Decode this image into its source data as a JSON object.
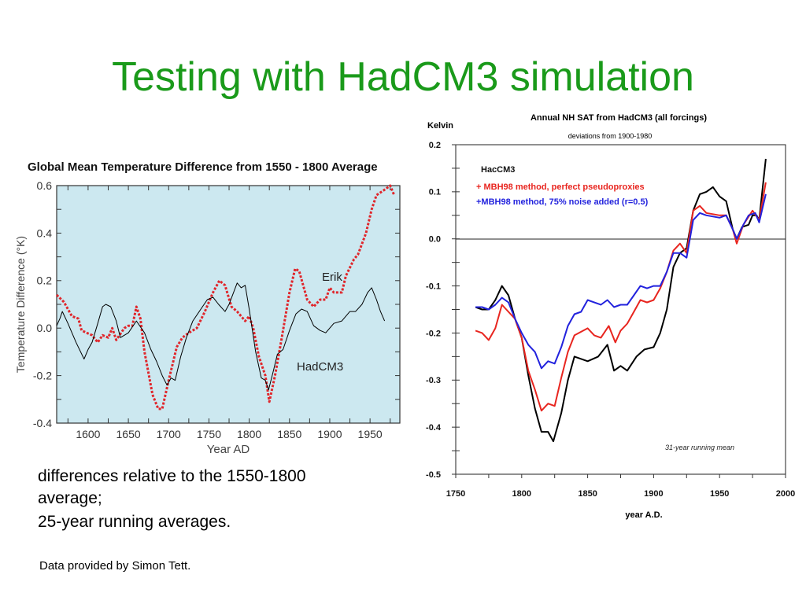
{
  "slide": {
    "title": "Testing  with HadCM3 simulation",
    "body_lines": [
      "differences relative to the 1550-1800",
      "average;",
      "25-year running averages."
    ],
    "credit": "Data provided by Simon Tett.",
    "title_color": "#1a9a1a"
  },
  "chart_data": [
    {
      "type": "line",
      "title": "Global Mean Temperature Difference from 1550 - 1800 Average",
      "xlabel": "Year AD",
      "ylabel": "Temperature Difference (°K)",
      "xlim": [
        1561,
        1987
      ],
      "ylim": [
        -0.4,
        0.6
      ],
      "xticks": [
        "1600",
        "1650",
        "1700",
        "1750",
        "1800",
        "1850",
        "1900",
        "1950"
      ],
      "yticks": [
        "0.6",
        "0.4",
        "0.2",
        "0.0",
        "-0.2",
        "-0.4"
      ],
      "background": "#cce8f0",
      "annotations": [
        "Erik",
        "HadCM3"
      ],
      "series": [
        {
          "name": "Erik",
          "color": "#e0262b",
          "style": "dotted",
          "x": [
            1561,
            1570,
            1580,
            1588,
            1592,
            1605,
            1612,
            1618,
            1625,
            1630,
            1635,
            1645,
            1650,
            1655,
            1660,
            1665,
            1670,
            1680,
            1687,
            1692,
            1700,
            1710,
            1717,
            1725,
            1735,
            1745,
            1755,
            1763,
            1770,
            1778,
            1785,
            1795,
            1800,
            1805,
            1812,
            1820,
            1825,
            1832,
            1840,
            1850,
            1857,
            1862,
            1872,
            1880,
            1888,
            1895,
            1900,
            1905,
            1915,
            1920,
            1930,
            1935,
            1945,
            1952,
            1958,
            1967,
            1975,
            1980
          ],
          "y": [
            0.14,
            0.11,
            0.05,
            0.04,
            -0.01,
            -0.03,
            -0.06,
            -0.03,
            -0.04,
            0.0,
            -0.05,
            0.0,
            0.01,
            0.01,
            0.09,
            0.04,
            -0.1,
            -0.28,
            -0.34,
            -0.34,
            -0.22,
            -0.08,
            -0.04,
            -0.02,
            0.0,
            0.07,
            0.15,
            0.2,
            0.18,
            0.09,
            0.07,
            0.03,
            0.05,
            0.0,
            -0.12,
            -0.2,
            -0.31,
            -0.2,
            -0.05,
            0.15,
            0.25,
            0.24,
            0.12,
            0.09,
            0.12,
            0.12,
            0.17,
            0.15,
            0.15,
            0.22,
            0.29,
            0.31,
            0.4,
            0.5,
            0.56,
            0.58,
            0.6,
            0.56
          ]
        },
        {
          "name": "HadCM3",
          "color": "#000000",
          "style": "solid",
          "x": [
            1561,
            1565,
            1568,
            1575,
            1585,
            1595,
            1600,
            1605,
            1612,
            1618,
            1622,
            1628,
            1635,
            1640,
            1650,
            1660,
            1670,
            1678,
            1685,
            1692,
            1698,
            1703,
            1708,
            1715,
            1722,
            1730,
            1740,
            1748,
            1755,
            1762,
            1770,
            1775,
            1785,
            1790,
            1795,
            1800,
            1808,
            1815,
            1820,
            1824,
            1830,
            1835,
            1842,
            1850,
            1858,
            1865,
            1872,
            1880,
            1888,
            1895,
            1905,
            1915,
            1925,
            1932,
            1940,
            1947,
            1952,
            1958,
            1963,
            1968
          ],
          "y": [
            0.01,
            0.04,
            0.07,
            0.02,
            -0.06,
            -0.13,
            -0.09,
            -0.06,
            0.02,
            0.09,
            0.1,
            0.09,
            0.03,
            -0.04,
            -0.02,
            0.03,
            -0.02,
            -0.09,
            -0.14,
            -0.2,
            -0.24,
            -0.21,
            -0.22,
            -0.12,
            -0.04,
            0.03,
            0.08,
            0.12,
            0.13,
            0.1,
            0.07,
            0.1,
            0.19,
            0.17,
            0.18,
            0.08,
            -0.1,
            -0.21,
            -0.22,
            -0.26,
            -0.18,
            -0.11,
            -0.09,
            -0.01,
            0.06,
            0.08,
            0.07,
            0.01,
            -0.01,
            -0.02,
            0.02,
            0.03,
            0.07,
            0.07,
            0.1,
            0.15,
            0.17,
            0.12,
            0.07,
            0.03
          ]
        }
      ]
    },
    {
      "type": "line",
      "title": "Annual NH SAT from HadCM3 (all forcings)",
      "subtitle": "deviations from 1900-1980",
      "ylabel": "Kelvin",
      "xlabel": "year A.D.",
      "xlim": [
        1750,
        2000
      ],
      "ylim": [
        -0.5,
        0.2
      ],
      "xticks": [
        "1750",
        "1800",
        "1850",
        "1900",
        "1950",
        "2000"
      ],
      "yticks": [
        "0.2",
        "0.1",
        "0.0",
        "-0.1",
        "-0.2",
        "-0.3",
        "-0.4",
        "-0.5"
      ],
      "note": "31-year running mean",
      "series": [
        {
          "name": "HacCM3",
          "color": "#000000",
          "x": [
            1765,
            1770,
            1775,
            1780,
            1785,
            1790,
            1795,
            1800,
            1805,
            1810,
            1815,
            1820,
            1824,
            1830,
            1835,
            1840,
            1850,
            1858,
            1865,
            1870,
            1875,
            1880,
            1887,
            1893,
            1900,
            1905,
            1910,
            1915,
            1920,
            1925,
            1930,
            1935,
            1940,
            1945,
            1950,
            1955,
            1960,
            1963,
            1967,
            1972,
            1975,
            1978,
            1980,
            1985
          ],
          "y": [
            -0.145,
            -0.15,
            -0.15,
            -0.13,
            -0.1,
            -0.12,
            -0.17,
            -0.21,
            -0.29,
            -0.36,
            -0.41,
            -0.41,
            -0.43,
            -0.37,
            -0.3,
            -0.25,
            -0.26,
            -0.25,
            -0.225,
            -0.28,
            -0.27,
            -0.28,
            -0.25,
            -0.235,
            -0.23,
            -0.2,
            -0.15,
            -0.06,
            -0.03,
            -0.02,
            0.06,
            0.095,
            0.1,
            0.11,
            0.09,
            0.08,
            0.02,
            0.0,
            0.025,
            0.03,
            0.05,
            0.05,
            0.04,
            0.17
          ]
        },
        {
          "name": "+ MBH98 method, perfect pseudoproxies",
          "color": "#e8251f",
          "x": [
            1765,
            1770,
            1775,
            1780,
            1785,
            1790,
            1795,
            1800,
            1805,
            1810,
            1815,
            1820,
            1825,
            1830,
            1835,
            1840,
            1850,
            1855,
            1860,
            1866,
            1871,
            1875,
            1880,
            1885,
            1890,
            1895,
            1900,
            1905,
            1910,
            1915,
            1920,
            1925,
            1930,
            1935,
            1940,
            1950,
            1955,
            1960,
            1963,
            1968,
            1975,
            1980,
            1985
          ],
          "y": [
            -0.195,
            -0.2,
            -0.215,
            -0.19,
            -0.14,
            -0.155,
            -0.17,
            -0.21,
            -0.28,
            -0.32,
            -0.365,
            -0.35,
            -0.355,
            -0.295,
            -0.24,
            -0.205,
            -0.19,
            -0.205,
            -0.21,
            -0.185,
            -0.22,
            -0.195,
            -0.18,
            -0.155,
            -0.13,
            -0.135,
            -0.13,
            -0.105,
            -0.07,
            -0.025,
            -0.01,
            -0.03,
            0.06,
            0.07,
            0.055,
            0.05,
            0.05,
            0.02,
            -0.01,
            0.03,
            0.06,
            0.04,
            0.12
          ]
        },
        {
          "name": "+MBH98 method, 75% noise added (r=0.5)",
          "color": "#2222dd",
          "x": [
            1765,
            1770,
            1775,
            1780,
            1785,
            1790,
            1795,
            1800,
            1805,
            1810,
            1815,
            1820,
            1825,
            1830,
            1835,
            1840,
            1845,
            1850,
            1860,
            1865,
            1870,
            1875,
            1880,
            1885,
            1890,
            1895,
            1900,
            1905,
            1910,
            1915,
            1920,
            1925,
            1930,
            1935,
            1940,
            1950,
            1955,
            1960,
            1963,
            1968,
            1972,
            1977,
            1980,
            1985
          ],
          "y": [
            -0.145,
            -0.145,
            -0.15,
            -0.14,
            -0.125,
            -0.135,
            -0.17,
            -0.2,
            -0.225,
            -0.24,
            -0.275,
            -0.26,
            -0.265,
            -0.23,
            -0.185,
            -0.16,
            -0.155,
            -0.13,
            -0.14,
            -0.13,
            -0.145,
            -0.14,
            -0.14,
            -0.12,
            -0.1,
            -0.105,
            -0.1,
            -0.1,
            -0.07,
            -0.03,
            -0.03,
            -0.04,
            0.04,
            0.055,
            0.05,
            0.045,
            0.05,
            0.02,
            0.0,
            0.03,
            0.05,
            0.055,
            0.035,
            0.095
          ]
        }
      ]
    }
  ]
}
